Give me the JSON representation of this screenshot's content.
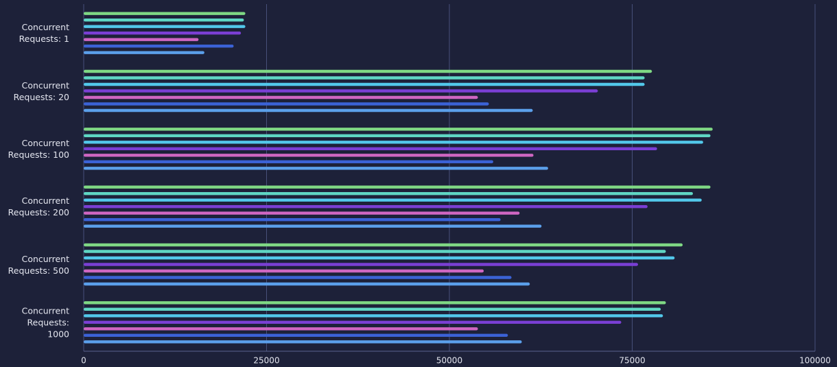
{
  "chart_data": {
    "type": "hbar",
    "categories": [
      "Concurrent Requests: 1",
      "Concurrent Requests: 20",
      "Concurrent Requests: 100",
      "Concurrent Requests: 200",
      "Concurrent Requests: 500",
      "Concurrent Requests: 1000"
    ],
    "series": [
      {
        "color": "#7fd884",
        "values": [
          22100,
          77700,
          86000,
          85700,
          81900,
          79600
        ]
      },
      {
        "color": "#5fd6c4",
        "values": [
          21900,
          76700,
          85700,
          83300,
          79600,
          78900
        ]
      },
      {
        "color": "#52c8ea",
        "values": [
          22100,
          76700,
          84700,
          84500,
          80800,
          79200
        ]
      },
      {
        "color": "#7a3fd4",
        "values": [
          21500,
          70300,
          78400,
          77100,
          75800,
          73500
        ]
      },
      {
        "color": "#cf66c2",
        "values": [
          15700,
          53900,
          61500,
          59600,
          54700,
          53900
        ]
      },
      {
        "color": "#3b62d6",
        "values": [
          20500,
          55400,
          56000,
          57000,
          58500,
          58000
        ]
      },
      {
        "color": "#5b9fea",
        "values": [
          16500,
          61400,
          63500,
          62600,
          61000,
          59900
        ]
      }
    ],
    "xlim": [
      0,
      100000
    ],
    "xticks": [
      0,
      25000,
      50000,
      75000,
      100000
    ],
    "grid": true
  }
}
